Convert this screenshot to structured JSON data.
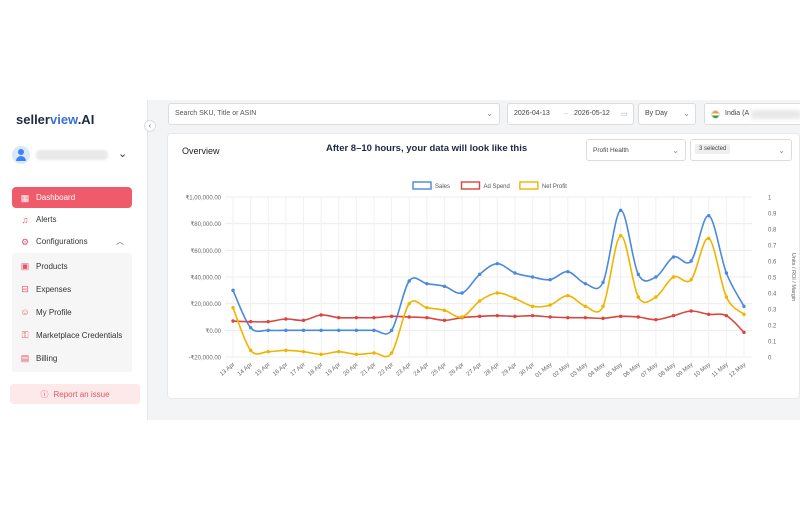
{
  "brand": {
    "prefix": "seller",
    "mid": "view",
    "suffix": ".AI"
  },
  "user": {
    "chevron": "⌄"
  },
  "nav": {
    "items": [
      {
        "label": "Dashboard",
        "icon": "dashboard-icon",
        "active": true
      },
      {
        "label": "Alerts",
        "icon": "bell-icon"
      },
      {
        "label": "Configurations",
        "icon": "gear-icon",
        "expanded": true
      }
    ],
    "subitems": [
      {
        "label": "Products",
        "icon": "box-icon"
      },
      {
        "label": "Expenses",
        "icon": "wallet-icon"
      },
      {
        "label": "My Profile",
        "icon": "user-icon"
      },
      {
        "label": "Marketplace Credentials",
        "icon": "key-icon"
      },
      {
        "label": "Billing",
        "icon": "card-icon"
      }
    ],
    "report_label": "Report an issue"
  },
  "filters": {
    "search_placeholder": "Search SKU, Title or ASIN",
    "date_from": "2026-04-13",
    "date_sep": "→",
    "date_to": "2026-05-12",
    "granularity": "By Day",
    "country": "India (A"
  },
  "card": {
    "title": "Overview",
    "notice": "After 8–10 hours, your data will look like this",
    "metric": "Profit Health",
    "selected": "3 selected"
  },
  "colors": {
    "sales": "#4a89dc",
    "ad_spend": "#d9453f",
    "net_profit": "#f0b400",
    "accent": "#ef5b6a"
  },
  "chart_data": {
    "type": "line",
    "categories": [
      "13 Apr",
      "14 Apr",
      "15 Apr",
      "16 Apr",
      "17 Apr",
      "18 Apr",
      "19 Apr",
      "20 Apr",
      "21 Apr",
      "22 Apr",
      "23 Apr",
      "24 Apr",
      "25 Apr",
      "26 Apr",
      "27 Apr",
      "28 Apr",
      "29 Apr",
      "30 Apr",
      "01 May",
      "02 May",
      "03 May",
      "04 May",
      "05 May",
      "06 May",
      "07 May",
      "08 May",
      "09 May",
      "10 May",
      "11 May",
      "12 May"
    ],
    "legend": [
      "Sales",
      "Ad Spend",
      "Net Profit"
    ],
    "y_left_ticks": [
      "₹1,00,000.00",
      "₹80,000.00",
      "₹60,000.00",
      "₹40,000.00",
      "₹20,000.00",
      "₹0.00",
      "-₹20,000.00"
    ],
    "y_right_ticks": [
      "1",
      "0.9",
      "0.8",
      "0.7",
      "0.6",
      "0.5",
      "0.4",
      "0.3",
      "0.2",
      "0.1",
      "0"
    ],
    "y_right_label": "Units / ROI / Margin",
    "ylim_left": [
      -20000,
      100000
    ],
    "ylim_right": [
      0,
      1
    ],
    "legend_position": "top-center",
    "grid": true,
    "series": [
      {
        "name": "Sales",
        "axis": "left",
        "values": [
          30000,
          2000,
          0,
          0,
          0,
          0,
          0,
          0,
          0,
          0,
          37000,
          35000,
          33000,
          28000,
          42000,
          50000,
          43000,
          40000,
          38000,
          44000,
          35000,
          36000,
          90000,
          42000,
          40000,
          55000,
          52000,
          86000,
          43000,
          18000
        ]
      },
      {
        "name": "Ad Spend",
        "axis": "left",
        "values": [
          7000,
          6500,
          6500,
          8500,
          7500,
          11500,
          9500,
          9500,
          9500,
          10500,
          10000,
          9500,
          7500,
          9500,
          10500,
          11000,
          10500,
          11000,
          10000,
          9500,
          9500,
          9000,
          10500,
          10000,
          8000,
          11000,
          14500,
          12000,
          11000,
          -1500
        ]
      },
      {
        "name": "Net Profit",
        "axis": "left",
        "values": [
          17000,
          -15000,
          -16000,
          -15000,
          -16000,
          -18000,
          -16000,
          -18000,
          -17000,
          -17000,
          20000,
          17000,
          15000,
          10000,
          22000,
          28000,
          24000,
          18000,
          19000,
          26000,
          18000,
          18000,
          71000,
          25000,
          25000,
          40000,
          38000,
          69000,
          25000,
          12000
        ]
      }
    ]
  }
}
